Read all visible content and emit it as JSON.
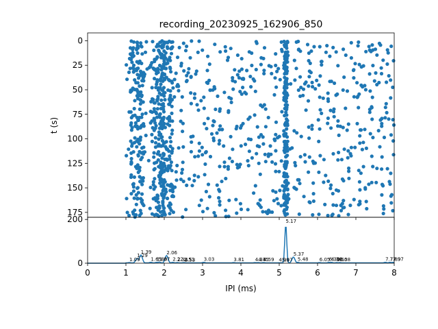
{
  "chart_data": [
    {
      "type": "scatter",
      "title": "recording_20230925_162906_850",
      "xlabel": "",
      "ylabel": "t (s)",
      "xlim": [
        0,
        8
      ],
      "ylim": [
        180,
        -8
      ],
      "y_ticks": [
        0,
        25,
        50,
        75,
        100,
        125,
        150,
        175
      ],
      "y_inverted": true,
      "point_color": "#1f77b4",
      "points_visible_range": {
        "x": [
          1.0,
          8.0
        ],
        "y": [
          0,
          180
        ]
      },
      "dense_columns_ms": [
        1.3,
        1.85,
        2.05,
        5.17
      ]
    },
    {
      "type": "line",
      "title": "",
      "xlabel": "IPI (ms)",
      "ylabel": "",
      "xlim": [
        0,
        8
      ],
      "ylim": [
        0,
        210
      ],
      "x_ticks": [
        0,
        1,
        2,
        3,
        4,
        5,
        6,
        7,
        8
      ],
      "y_ticks": [
        0,
        200
      ],
      "line_color": "#1f77b4",
      "peaks": [
        {
          "x": 1.09,
          "y": 3,
          "label": "1.09"
        },
        {
          "x": 1.29,
          "y": 22,
          "label": "1.29"
        },
        {
          "x": 1.39,
          "y": 38,
          "label": "1.39"
        },
        {
          "x": 1.65,
          "y": 4,
          "label": "1.65"
        },
        {
          "x": 1.8,
          "y": 4,
          "label": "1.80"
        },
        {
          "x": 1.87,
          "y": 5,
          "label": "1.87"
        },
        {
          "x": 2.06,
          "y": 35,
          "label": "2.06"
        },
        {
          "x": 2.22,
          "y": 4,
          "label": "2.22"
        },
        {
          "x": 2.34,
          "y": 3,
          "label": "2.34"
        },
        {
          "x": 2.51,
          "y": 3,
          "label": "2.51"
        },
        {
          "x": 2.53,
          "y": 2,
          "label": "2.53"
        },
        {
          "x": 3.03,
          "y": 4,
          "label": "3.03"
        },
        {
          "x": 3.81,
          "y": 3,
          "label": "3.81"
        },
        {
          "x": 4.37,
          "y": 3,
          "label": "4.37"
        },
        {
          "x": 4.45,
          "y": 3,
          "label": "4.45"
        },
        {
          "x": 4.59,
          "y": 3,
          "label": "4.59"
        },
        {
          "x": 4.99,
          "y": 2,
          "label": "4.99"
        },
        {
          "x": 5.07,
          "y": 2,
          "label": "5.07"
        },
        {
          "x": 5.17,
          "y": 178,
          "label": "5.17"
        },
        {
          "x": 5.37,
          "y": 28,
          "label": "5.37"
        },
        {
          "x": 5.48,
          "y": 4,
          "label": "5.48"
        },
        {
          "x": 6.05,
          "y": 3,
          "label": "6.05"
        },
        {
          "x": 6.3,
          "y": 4,
          "label": "6.30"
        },
        {
          "x": 6.36,
          "y": 4,
          "label": "6.36"
        },
        {
          "x": 6.5,
          "y": 3,
          "label": "6.50"
        },
        {
          "x": 6.58,
          "y": 3,
          "label": "6.58"
        },
        {
          "x": 7.77,
          "y": 4,
          "label": "7.77"
        },
        {
          "x": 7.89,
          "y": 4,
          "label": "7.89"
        },
        {
          "x": 7.97,
          "y": 4,
          "label": "7.97"
        }
      ]
    }
  ]
}
